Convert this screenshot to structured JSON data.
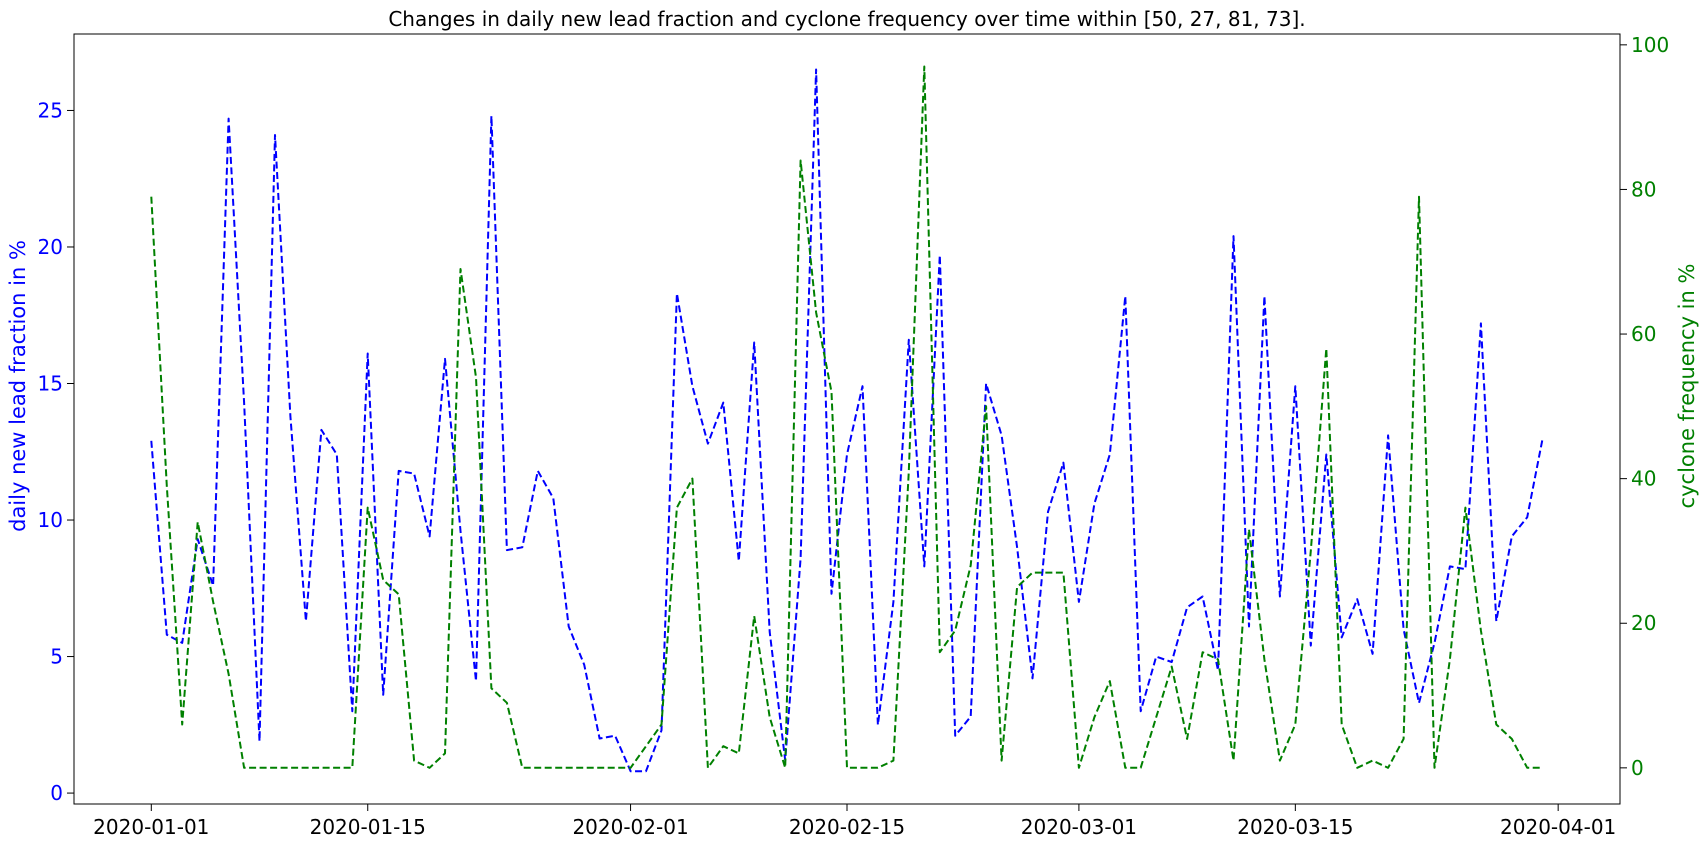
{
  "chart_data": {
    "type": "line",
    "title": "Changes in daily new lead fraction and cyclone frequency over time within [50, 27, 81, 73].",
    "x": [
      "2020-01-01",
      "2020-01-02",
      "2020-01-03",
      "2020-01-04",
      "2020-01-05",
      "2020-01-06",
      "2020-01-07",
      "2020-01-08",
      "2020-01-09",
      "2020-01-10",
      "2020-01-11",
      "2020-01-12",
      "2020-01-13",
      "2020-01-14",
      "2020-01-15",
      "2020-01-16",
      "2020-01-17",
      "2020-01-18",
      "2020-01-19",
      "2020-01-20",
      "2020-01-21",
      "2020-01-22",
      "2020-01-23",
      "2020-01-24",
      "2020-01-25",
      "2020-01-26",
      "2020-01-27",
      "2020-01-28",
      "2020-01-29",
      "2020-01-30",
      "2020-01-31",
      "2020-02-01",
      "2020-02-02",
      "2020-02-03",
      "2020-02-04",
      "2020-02-05",
      "2020-02-06",
      "2020-02-07",
      "2020-02-08",
      "2020-02-09",
      "2020-02-10",
      "2020-02-11",
      "2020-02-12",
      "2020-02-13",
      "2020-02-14",
      "2020-02-15",
      "2020-02-16",
      "2020-02-17",
      "2020-02-18",
      "2020-02-19",
      "2020-02-20",
      "2020-02-21",
      "2020-02-22",
      "2020-02-23",
      "2020-02-24",
      "2020-02-25",
      "2020-02-26",
      "2020-02-27",
      "2020-02-28",
      "2020-02-29",
      "2020-03-01",
      "2020-03-02",
      "2020-03-03",
      "2020-03-04",
      "2020-03-05",
      "2020-03-06",
      "2020-03-07",
      "2020-03-08",
      "2020-03-09",
      "2020-03-10",
      "2020-03-11",
      "2020-03-12",
      "2020-03-13",
      "2020-03-14",
      "2020-03-15",
      "2020-03-16",
      "2020-03-17",
      "2020-03-18",
      "2020-03-19",
      "2020-03-20",
      "2020-03-21",
      "2020-03-22",
      "2020-03-23",
      "2020-03-24",
      "2020-03-25",
      "2020-03-26",
      "2020-03-27",
      "2020-03-28",
      "2020-03-29",
      "2020-03-30",
      "2020-03-31"
    ],
    "series": [
      {
        "axis": "left",
        "color": "#0000ff",
        "values": [
          12.9,
          5.8,
          5.5,
          9.3,
          7.6,
          24.7,
          14.3,
          1.9,
          24.1,
          13.8,
          6.3,
          13.3,
          12.4,
          3.0,
          16.1,
          3.6,
          11.8,
          11.7,
          9.4,
          15.9,
          9.6,
          4.1,
          24.8,
          8.9,
          9.0,
          11.8,
          10.8,
          6.1,
          4.7,
          2.0,
          2.1,
          0.8,
          0.8,
          2.3,
          18.3,
          14.9,
          12.8,
          14.3,
          8.5,
          16.5,
          5.9,
          1.2,
          8.6,
          26.5,
          7.3,
          12.4,
          14.9,
          2.5,
          7.0,
          16.6,
          8.3,
          19.7,
          2.1,
          2.8,
          15.0,
          13.1,
          9.0,
          4.2,
          10.3,
          12.1,
          7.0,
          10.6,
          12.4,
          18.2,
          3.0,
          5.0,
          4.8,
          6.8,
          7.2,
          4.5,
          20.4,
          6.1,
          18.2,
          7.2,
          14.9,
          5.4,
          12.4,
          5.7,
          7.1,
          5.1,
          13.1,
          6.0,
          3.3,
          5.5,
          8.3,
          8.2,
          17.2,
          6.3,
          9.4,
          10.1,
          13.0
        ]
      },
      {
        "axis": "right",
        "color": "#008000",
        "values": [
          79,
          39,
          6,
          34,
          23,
          13,
          0,
          0,
          0,
          0,
          0,
          0,
          0,
          0,
          36,
          26,
          24,
          1,
          0,
          2,
          69,
          54,
          11,
          9,
          0,
          0,
          0,
          0,
          0,
          0,
          0,
          0,
          3,
          6,
          36,
          40,
          0,
          3,
          2,
          21,
          7,
          0,
          84,
          63,
          52,
          0,
          0,
          0,
          1,
          41,
          97,
          16,
          19,
          28,
          50,
          1,
          25,
          27,
          27,
          27,
          0,
          7,
          12,
          0,
          0,
          7,
          14,
          4,
          16,
          15,
          1,
          33,
          15,
          1,
          6,
          30,
          58,
          6,
          0,
          1,
          0,
          4,
          79,
          0,
          15,
          36,
          19,
          6,
          4,
          0,
          0
        ]
      }
    ],
    "xlim": [
      "2019-12-27",
      "2020-04-05"
    ],
    "left_axis": {
      "label": "daily new lead fraction in %",
      "color": "#0000ff",
      "ylim": [
        -0.4,
        27.8
      ],
      "ticks": [
        0,
        5,
        10,
        15,
        20,
        25
      ]
    },
    "right_axis": {
      "label": "cyclone frequency in %",
      "color": "#008000",
      "ylim": [
        -5,
        101.5
      ],
      "ticks": [
        0,
        20,
        40,
        60,
        80,
        100
      ]
    },
    "x_ticks": [
      "2020-01-01",
      "2020-01-15",
      "2020-02-01",
      "2020-02-15",
      "2020-03-01",
      "2020-03-15",
      "2020-04-01"
    ],
    "line_style": "dashed",
    "grid": false
  }
}
